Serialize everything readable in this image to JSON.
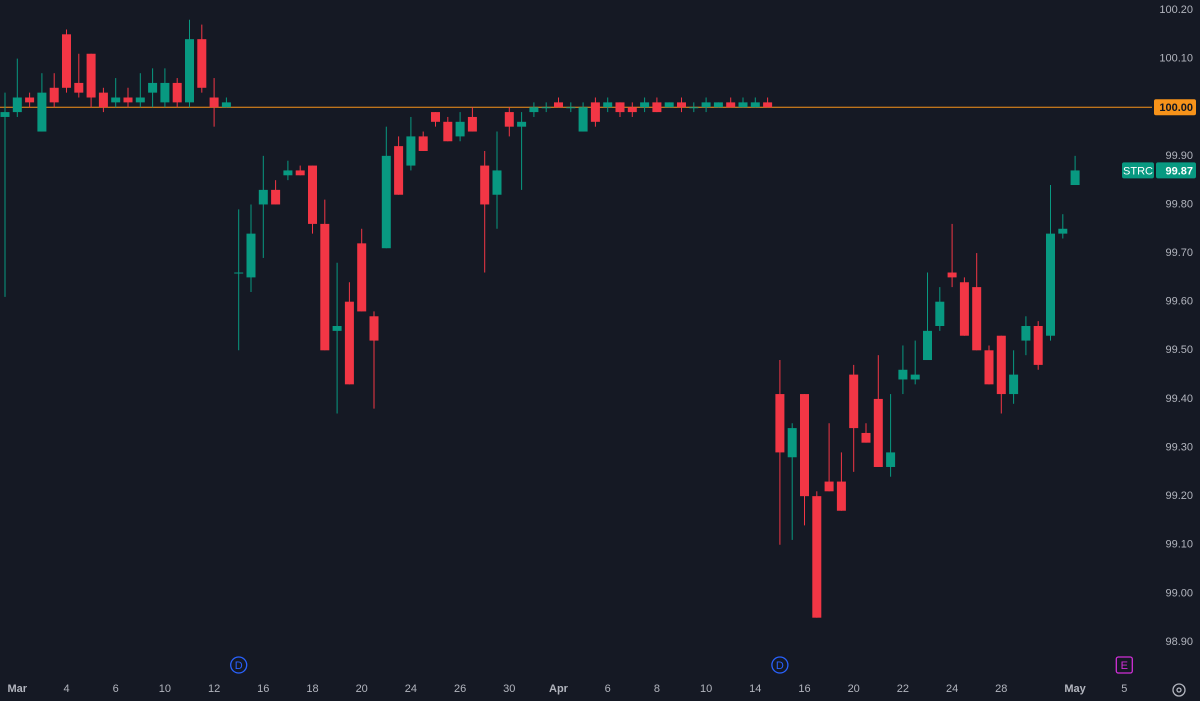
{
  "chart_data": {
    "type": "candlestick",
    "symbol": "STRC",
    "x": [
      null,
      "Mar",
      null,
      null,
      null,
      "4",
      null,
      null,
      null,
      "6",
      null,
      null,
      null,
      "10",
      null,
      null,
      null,
      "12",
      null,
      null,
      null,
      "16",
      null,
      null,
      null,
      "18",
      null,
      null,
      null,
      "20",
      null,
      null,
      null,
      "24",
      null,
      null,
      null,
      "26",
      null,
      null,
      null,
      "30",
      null,
      null,
      null,
      "Apr",
      null,
      null,
      null,
      "6",
      null,
      null,
      null,
      "8",
      null,
      null,
      null,
      "10",
      null,
      null,
      null,
      "14",
      null,
      null,
      null,
      "16",
      null,
      null,
      null,
      "20",
      null,
      null,
      null,
      "22",
      null,
      null,
      null,
      "24",
      null,
      null,
      null,
      "28",
      null,
      null,
      null,
      null,
      null,
      "May",
      null,
      null,
      null,
      "5"
    ],
    "open": [
      99.98,
      99.99,
      100.02,
      99.95,
      100.04,
      100.15,
      100.05,
      100.11,
      100.03,
      100.01,
      100.02,
      100.01,
      100.03,
      100.01,
      100.05,
      100.01,
      100.14,
      100.02,
      100.0,
      99.66,
      99.65,
      99.8,
      99.83,
      99.86,
      99.87,
      99.88,
      99.76,
      99.54,
      99.6,
      99.72,
      99.57,
      99.71,
      99.92,
      99.88,
      99.94,
      99.99,
      99.97,
      99.94,
      99.98,
      99.88,
      99.82,
      99.99,
      99.96,
      99.99,
      100.0,
      100.01,
      100.0,
      99.95,
      100.01,
      100.0,
      100.01,
      100.0,
      100.0,
      100.01,
      100.0,
      100.01,
      100.0,
      100.0,
      100.0,
      100.01,
      100.0,
      100.0,
      100.01,
      99.41,
      99.28,
      99.41,
      99.2,
      99.23,
      99.23,
      99.45,
      99.33,
      99.4,
      99.26,
      99.44,
      99.44,
      99.48,
      99.55,
      99.66,
      99.64,
      99.63,
      99.5,
      99.53,
      99.41,
      99.52,
      99.55,
      99.53,
      99.74,
      99.84,
      null,
      null,
      null,
      null
    ],
    "high": [
      100.03,
      100.1,
      100.03,
      100.07,
      100.07,
      100.16,
      100.11,
      100.11,
      100.04,
      100.06,
      100.04,
      100.07,
      100.08,
      100.08,
      100.06,
      100.18,
      100.17,
      100.06,
      100.02,
      99.79,
      99.8,
      99.9,
      99.85,
      99.89,
      99.88,
      99.88,
      99.81,
      99.68,
      99.64,
      99.75,
      99.58,
      99.96,
      99.94,
      99.98,
      99.95,
      99.99,
      99.98,
      99.99,
      100.0,
      99.91,
      99.95,
      100.0,
      99.99,
      100.01,
      100.01,
      100.02,
      100.01,
      100.01,
      100.02,
      100.02,
      100.01,
      100.01,
      100.02,
      100.02,
      100.01,
      100.02,
      100.01,
      100.02,
      100.01,
      100.02,
      100.02,
      100.02,
      100.02,
      99.48,
      99.35,
      99.41,
      99.21,
      99.35,
      99.29,
      99.47,
      99.35,
      99.49,
      99.41,
      99.51,
      99.52,
      99.66,
      99.63,
      99.76,
      99.65,
      99.7,
      99.51,
      99.53,
      99.5,
      99.57,
      99.56,
      99.84,
      99.78,
      99.9,
      null,
      null,
      null,
      null
    ],
    "low": [
      99.61,
      99.98,
      100.0,
      99.95,
      100.0,
      100.03,
      100.02,
      100.0,
      99.99,
      100.0,
      100.0,
      100.0,
      100.0,
      100.0,
      100.0,
      100.0,
      100.03,
      99.96,
      100.0,
      99.5,
      99.62,
      99.69,
      99.8,
      99.85,
      99.86,
      99.74,
      99.5,
      99.37,
      99.43,
      99.58,
      99.38,
      99.71,
      99.82,
      99.87,
      99.91,
      99.96,
      99.93,
      99.93,
      99.95,
      99.66,
      99.75,
      99.94,
      99.83,
      99.98,
      99.99,
      100.0,
      99.99,
      99.95,
      99.96,
      99.99,
      99.98,
      99.98,
      99.99,
      99.99,
      100.0,
      99.99,
      99.99,
      99.99,
      100.0,
      100.0,
      100.0,
      100.0,
      100.0,
      99.1,
      99.11,
      99.14,
      98.95,
      99.21,
      99.17,
      99.25,
      99.31,
      99.26,
      99.24,
      99.41,
      99.43,
      99.48,
      99.54,
      99.63,
      99.53,
      99.5,
      99.43,
      99.37,
      99.39,
      99.49,
      99.46,
      99.52,
      99.73,
      99.84,
      null,
      null,
      null,
      null
    ],
    "close": [
      99.99,
      100.02,
      100.01,
      100.03,
      100.01,
      100.04,
      100.03,
      100.02,
      100.0,
      100.02,
      100.01,
      100.02,
      100.05,
      100.05,
      100.01,
      100.14,
      100.04,
      100.0,
      100.01,
      99.66,
      99.74,
      99.83,
      99.8,
      99.87,
      99.86,
      99.76,
      99.5,
      99.55,
      99.43,
      99.58,
      99.52,
      99.9,
      99.82,
      99.94,
      99.91,
      99.97,
      99.93,
      99.97,
      99.95,
      99.8,
      99.87,
      99.96,
      99.97,
      100.0,
      100.0,
      100.0,
      100.0,
      100.0,
      99.97,
      100.01,
      99.99,
      99.99,
      100.01,
      99.99,
      100.01,
      100.0,
      100.0,
      100.01,
      100.01,
      100.0,
      100.01,
      100.01,
      100.0,
      99.29,
      99.34,
      99.2,
      98.95,
      99.21,
      99.17,
      99.34,
      99.31,
      99.26,
      99.29,
      99.46,
      99.45,
      99.54,
      99.6,
      99.65,
      99.53,
      99.5,
      99.43,
      99.41,
      99.45,
      99.55,
      99.47,
      99.74,
      99.75,
      99.87,
      null,
      null,
      null,
      null
    ],
    "up_color": "#089981",
    "down_color": "#f23645",
    "ylim": [
      98.9,
      100.2
    ],
    "yticks": [
      {
        "value": 100.2,
        "label": "100.20"
      },
      {
        "value": 100.1,
        "label": "100.10"
      },
      {
        "value": 99.9,
        "label": "99.90"
      },
      {
        "value": 99.8,
        "label": "99.80"
      },
      {
        "value": 99.7,
        "label": "99.70"
      },
      {
        "value": 99.6,
        "label": "99.60"
      },
      {
        "value": 99.5,
        "label": "99.50"
      },
      {
        "value": 99.4,
        "label": "99.40"
      },
      {
        "value": 99.3,
        "label": "99.30"
      },
      {
        "value": 99.2,
        "label": "99.20"
      },
      {
        "value": 99.1,
        "label": "99.10"
      },
      {
        "value": 99.0,
        "label": "99.00"
      },
      {
        "value": 98.9,
        "label": "98.90"
      }
    ],
    "price_line": {
      "value": 100.0,
      "label": "100.00",
      "color": "#f7931a"
    },
    "last_price": {
      "value": 99.87,
      "label": "99.87"
    },
    "events": [
      {
        "label": "D",
        "at": 19,
        "color": "#2962ff"
      },
      {
        "label": "D",
        "at": 63,
        "color": "#2962ff"
      },
      {
        "label": "E",
        "at": 91,
        "color": "#d12fd8"
      }
    ]
  }
}
